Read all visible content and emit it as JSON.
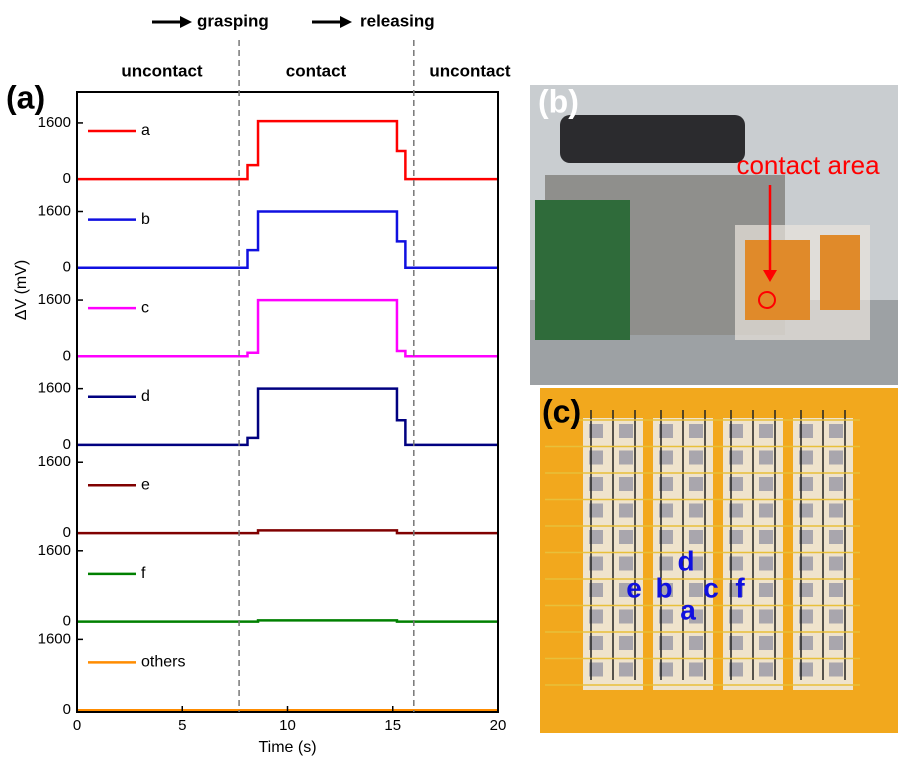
{
  "figure": {
    "panel_labels": [
      "(a)",
      "(b)",
      "(c)"
    ],
    "phases": [
      "uncontact",
      "contact",
      "uncontact"
    ],
    "actions": [
      "grasping",
      "releasing"
    ],
    "phase_boundaries": [
      7.7,
      16.0
    ],
    "photo_annotation": "contact area",
    "sensor_labels": [
      "e",
      "b",
      "d",
      "a",
      "c",
      "f"
    ]
  },
  "chart_data": [
    {
      "type": "line",
      "x": [
        0,
        8.1,
        8.1,
        8.6,
        8.6,
        15.2,
        15.2,
        15.6,
        15.6,
        20
      ],
      "series": [
        {
          "name": "a",
          "color": "#ff0000",
          "values": [
            0,
            0,
            400,
            400,
            1650,
            1650,
            800,
            800,
            0,
            0
          ]
        }
      ],
      "xlim": [
        0,
        20
      ],
      "ylim": [
        -40,
        2480
      ],
      "yticks": [
        0,
        1600
      ]
    },
    {
      "type": "line",
      "x": [
        0,
        8.1,
        8.1,
        8.6,
        8.6,
        15.2,
        15.2,
        15.6,
        15.6,
        20
      ],
      "series": [
        {
          "name": "b",
          "color": "#1010e0",
          "values": [
            0,
            0,
            500,
            500,
            1600,
            1600,
            750,
            750,
            0,
            0
          ]
        }
      ],
      "xlim": [
        0,
        20
      ],
      "ylim": [
        -40,
        2480
      ],
      "yticks": [
        0,
        1600
      ]
    },
    {
      "type": "line",
      "x": [
        0,
        8.1,
        8.1,
        8.6,
        8.6,
        15.2,
        15.2,
        15.6,
        15.6,
        20
      ],
      "series": [
        {
          "name": "c",
          "color": "#ff00ff",
          "values": [
            0,
            0,
            100,
            100,
            1600,
            1600,
            150,
            150,
            0,
            0
          ]
        }
      ],
      "xlim": [
        0,
        20
      ],
      "ylim": [
        -40,
        2480
      ],
      "yticks": [
        0,
        1600
      ]
    },
    {
      "type": "line",
      "x": [
        0,
        8.1,
        8.1,
        8.6,
        8.6,
        15.2,
        15.2,
        15.6,
        15.6,
        20
      ],
      "series": [
        {
          "name": "d",
          "color": "#000080",
          "values": [
            0,
            0,
            200,
            200,
            1600,
            1600,
            700,
            700,
            0,
            0
          ]
        }
      ],
      "xlim": [
        0,
        20
      ],
      "ylim": [
        -40,
        2480
      ],
      "yticks": [
        0,
        1600
      ],
      "ylabel": "ΔV (mV)"
    },
    {
      "type": "line",
      "x": [
        0,
        8.6,
        8.6,
        15.2,
        15.2,
        20
      ],
      "series": [
        {
          "name": "e",
          "color": "#800000",
          "values": [
            0,
            0,
            60,
            60,
            0,
            0
          ]
        }
      ],
      "xlim": [
        0,
        20
      ],
      "ylim": [
        -40,
        1960
      ],
      "yticks": [
        0,
        1600
      ]
    },
    {
      "type": "line",
      "x": [
        0,
        8.6,
        8.6,
        15.2,
        15.2,
        20
      ],
      "series": [
        {
          "name": "f",
          "color": "#008000",
          "values": [
            0,
            0,
            30,
            30,
            0,
            0
          ]
        }
      ],
      "xlim": [
        0,
        20
      ],
      "ylim": [
        -40,
        1960
      ],
      "yticks": [
        0,
        1600
      ]
    },
    {
      "type": "line",
      "x": [
        0,
        20
      ],
      "series": [
        {
          "name": "others",
          "color": "#ff8c00",
          "values": [
            0,
            0
          ]
        }
      ],
      "xlim": [
        0,
        20
      ],
      "ylim": [
        -40,
        1960
      ],
      "yticks": [
        0,
        1600
      ],
      "xticks": [
        0,
        5,
        10,
        15,
        20
      ],
      "xlabel": "Time (s)"
    }
  ]
}
